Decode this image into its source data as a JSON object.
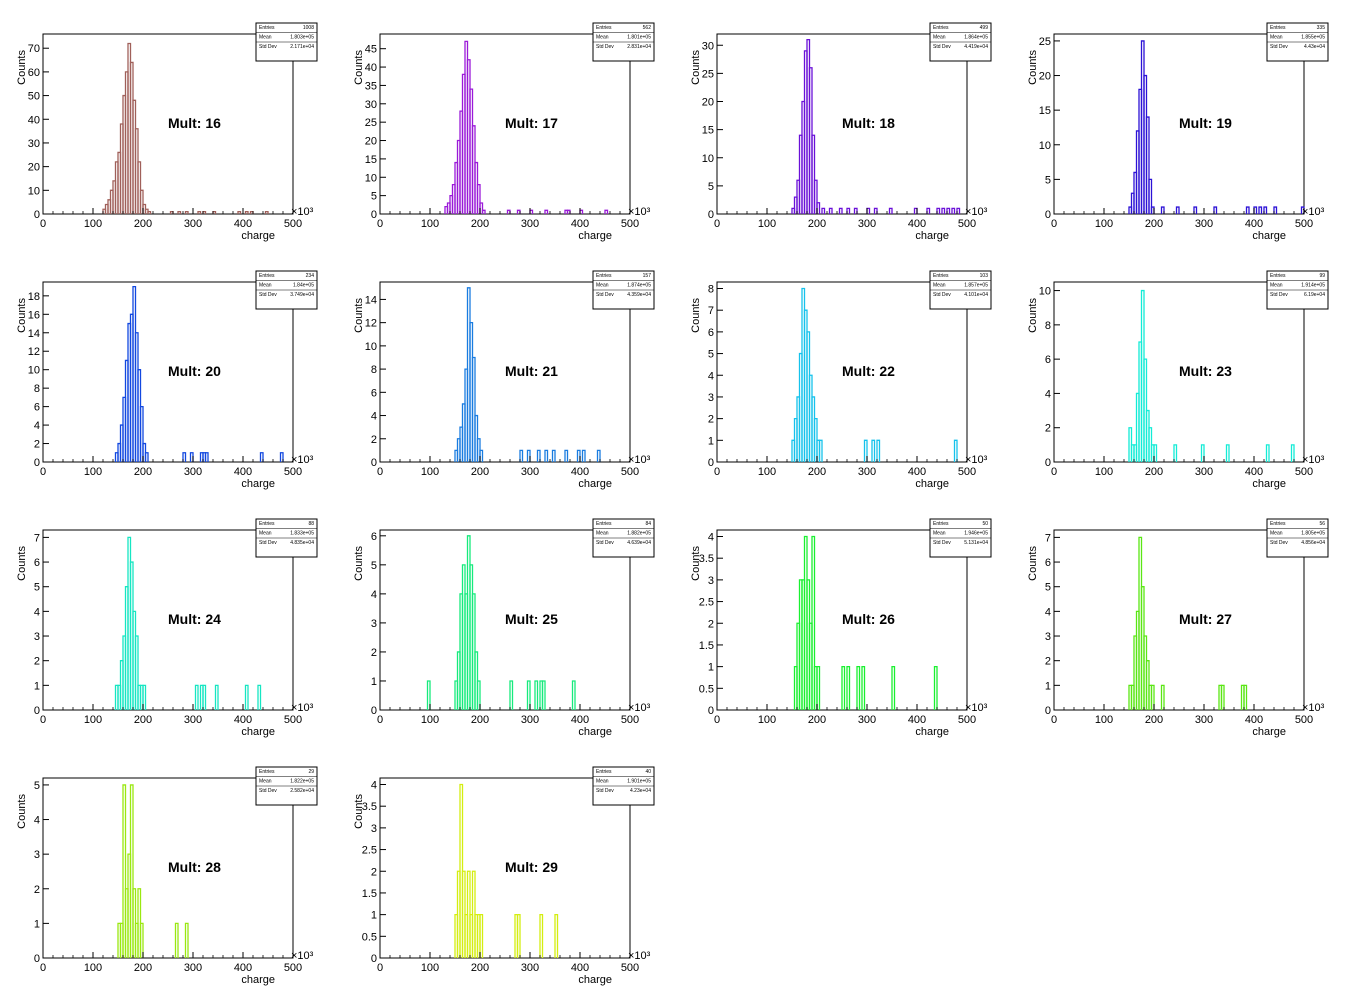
{
  "axis": {
    "xlabel": "charge",
    "ylabel": "Counts",
    "x_multiplier": "×10³",
    "xlim": [
      0,
      500
    ],
    "x_ticks": [
      0,
      100,
      200,
      300,
      400,
      500
    ]
  },
  "stats_labels": {
    "entries": "Entries",
    "mean": "Mean",
    "std": "Std Dev"
  },
  "chart_data": [
    {
      "type": "histogram",
      "title": "Mult: 16",
      "color": "#a0605a",
      "entries": "1008",
      "mean": "1.803e+05",
      "std": "2.171e+04",
      "ylim": [
        0,
        76
      ],
      "yticks": [
        0,
        10,
        20,
        30,
        40,
        50,
        60,
        70
      ],
      "bins": [
        [
          120,
          2
        ],
        [
          125,
          4
        ],
        [
          130,
          6
        ],
        [
          135,
          10
        ],
        [
          140,
          14
        ],
        [
          145,
          22
        ],
        [
          150,
          26
        ],
        [
          155,
          38
        ],
        [
          160,
          50
        ],
        [
          165,
          60
        ],
        [
          170,
          72
        ],
        [
          175,
          64
        ],
        [
          180,
          48
        ],
        [
          185,
          36
        ],
        [
          190,
          22
        ],
        [
          195,
          10
        ],
        [
          200,
          4
        ],
        [
          205,
          2
        ],
        [
          210,
          1
        ],
        [
          255,
          1
        ],
        [
          270,
          1
        ],
        [
          285,
          1
        ],
        [
          310,
          1
        ],
        [
          320,
          1
        ],
        [
          340,
          1
        ],
        [
          390,
          1
        ],
        [
          405,
          1
        ],
        [
          415,
          1
        ],
        [
          445,
          1
        ]
      ]
    },
    {
      "type": "histogram",
      "title": "Mult: 17",
      "color": "#9a1ad8",
      "entries": "562",
      "mean": "1.801e+05",
      "std": "2.831e+04",
      "ylim": [
        0,
        49
      ],
      "yticks": [
        0,
        5,
        10,
        15,
        20,
        25,
        30,
        35,
        40,
        45
      ],
      "bins": [
        [
          130,
          2
        ],
        [
          135,
          3
        ],
        [
          140,
          5
        ],
        [
          145,
          8
        ],
        [
          150,
          14
        ],
        [
          155,
          20
        ],
        [
          160,
          28
        ],
        [
          165,
          38
        ],
        [
          170,
          47
        ],
        [
          175,
          42
        ],
        [
          180,
          34
        ],
        [
          185,
          24
        ],
        [
          190,
          14
        ],
        [
          195,
          8
        ],
        [
          200,
          3
        ],
        [
          205,
          1
        ],
        [
          255,
          1
        ],
        [
          275,
          1
        ],
        [
          300,
          1
        ],
        [
          330,
          1
        ],
        [
          370,
          1
        ],
        [
          375,
          1
        ],
        [
          400,
          1
        ],
        [
          450,
          1
        ]
      ]
    },
    {
      "type": "histogram",
      "title": "Mult: 18",
      "color": "#6a10d8",
      "entries": "499",
      "mean": "1.864e+05",
      "std": "4.419e+04",
      "ylim": [
        0,
        32
      ],
      "yticks": [
        0,
        5,
        10,
        15,
        20,
        25,
        30
      ],
      "bins": [
        [
          150,
          1
        ],
        [
          155,
          3
        ],
        [
          160,
          6
        ],
        [
          165,
          14
        ],
        [
          170,
          20
        ],
        [
          175,
          29
        ],
        [
          180,
          31
        ],
        [
          185,
          26
        ],
        [
          190,
          14
        ],
        [
          195,
          6
        ],
        [
          200,
          2
        ],
        [
          210,
          1
        ],
        [
          225,
          1
        ],
        [
          245,
          1
        ],
        [
          260,
          1
        ],
        [
          275,
          1
        ],
        [
          300,
          1
        ],
        [
          315,
          1
        ],
        [
          345,
          1
        ],
        [
          395,
          1
        ],
        [
          420,
          1
        ],
        [
          440,
          1
        ],
        [
          450,
          1
        ],
        [
          460,
          1
        ],
        [
          470,
          1
        ],
        [
          480,
          1
        ]
      ]
    },
    {
      "type": "histogram",
      "title": "Mult: 19",
      "color": "#2c12d6",
      "entries": "335",
      "mean": "1.855e+05",
      "std": "4.43e+04",
      "ylim": [
        0,
        26
      ],
      "yticks": [
        0,
        5,
        10,
        15,
        20,
        25
      ],
      "bins": [
        [
          150,
          1
        ],
        [
          155,
          3
        ],
        [
          160,
          6
        ],
        [
          165,
          12
        ],
        [
          170,
          18
        ],
        [
          175,
          25
        ],
        [
          180,
          20
        ],
        [
          185,
          14
        ],
        [
          190,
          5
        ],
        [
          195,
          1
        ],
        [
          215,
          1
        ],
        [
          245,
          1
        ],
        [
          280,
          1
        ],
        [
          320,
          1
        ],
        [
          385,
          1
        ],
        [
          400,
          1
        ],
        [
          410,
          1
        ],
        [
          420,
          1
        ],
        [
          440,
          1
        ],
        [
          495,
          1
        ]
      ]
    },
    {
      "type": "histogram",
      "title": "Mult: 20",
      "color": "#1248e0",
      "entries": "234",
      "mean": "1.84e+05",
      "std": "3.749e+04",
      "ylim": [
        0,
        19.5
      ],
      "yticks": [
        0,
        2,
        4,
        6,
        8,
        10,
        12,
        14,
        16,
        18
      ],
      "bins": [
        [
          145,
          1
        ],
        [
          150,
          2
        ],
        [
          155,
          4
        ],
        [
          160,
          7
        ],
        [
          165,
          11
        ],
        [
          170,
          15
        ],
        [
          175,
          16
        ],
        [
          180,
          19
        ],
        [
          185,
          14
        ],
        [
          190,
          10
        ],
        [
          195,
          6
        ],
        [
          200,
          2
        ],
        [
          205,
          1
        ],
        [
          280,
          1
        ],
        [
          295,
          1
        ],
        [
          315,
          1
        ],
        [
          320,
          1
        ],
        [
          325,
          1
        ],
        [
          435,
          1
        ],
        [
          475,
          1
        ]
      ]
    },
    {
      "type": "histogram",
      "title": "Mult: 21",
      "color": "#1a7ce0",
      "entries": "157",
      "mean": "1.874e+05",
      "std": "4.359e+04",
      "ylim": [
        0,
        15.5
      ],
      "yticks": [
        0,
        2,
        4,
        6,
        8,
        10,
        12,
        14
      ],
      "bins": [
        [
          150,
          1
        ],
        [
          155,
          2
        ],
        [
          160,
          3
        ],
        [
          165,
          5
        ],
        [
          170,
          8
        ],
        [
          175,
          15
        ],
        [
          180,
          12
        ],
        [
          185,
          9
        ],
        [
          190,
          4
        ],
        [
          195,
          2
        ],
        [
          200,
          1
        ],
        [
          280,
          1
        ],
        [
          295,
          1
        ],
        [
          315,
          1
        ],
        [
          330,
          1
        ],
        [
          345,
          1
        ],
        [
          370,
          1
        ],
        [
          395,
          1
        ],
        [
          405,
          1
        ],
        [
          435,
          1
        ]
      ]
    },
    {
      "type": "histogram",
      "title": "Mult: 22",
      "color": "#16c2ec",
      "entries": "103",
      "mean": "1.857e+05",
      "std": "4.101e+04",
      "ylim": [
        0,
        8.3
      ],
      "yticks": [
        0,
        1,
        2,
        3,
        4,
        5,
        6,
        7,
        8
      ],
      "bins": [
        [
          150,
          1
        ],
        [
          155,
          2
        ],
        [
          160,
          3
        ],
        [
          165,
          5
        ],
        [
          170,
          8
        ],
        [
          175,
          7
        ],
        [
          180,
          6
        ],
        [
          185,
          4
        ],
        [
          190,
          3
        ],
        [
          195,
          2
        ],
        [
          200,
          1
        ],
        [
          205,
          1
        ],
        [
          295,
          1
        ],
        [
          310,
          1
        ],
        [
          320,
          1
        ],
        [
          475,
          1
        ]
      ]
    },
    {
      "type": "histogram",
      "title": "Mult: 23",
      "color": "#12ecd6",
      "entries": "99",
      "mean": "1.914e+05",
      "std": "6.19e+04",
      "ylim": [
        0,
        10.5
      ],
      "yticks": [
        0,
        2,
        4,
        6,
        8,
        10
      ],
      "bins": [
        [
          150,
          2
        ],
        [
          155,
          1
        ],
        [
          160,
          1
        ],
        [
          165,
          4
        ],
        [
          170,
          7
        ],
        [
          175,
          10
        ],
        [
          180,
          6
        ],
        [
          185,
          3
        ],
        [
          190,
          2
        ],
        [
          195,
          1
        ],
        [
          200,
          1
        ],
        [
          240,
          1
        ],
        [
          295,
          1
        ],
        [
          345,
          1
        ],
        [
          425,
          1
        ],
        [
          475,
          1
        ]
      ]
    },
    {
      "type": "histogram",
      "title": "Mult: 24",
      "color": "#16e6c2",
      "entries": "88",
      "mean": "1.833e+05",
      "std": "4.835e+04",
      "ylim": [
        0,
        7.3
      ],
      "yticks": [
        0,
        1,
        2,
        3,
        4,
        5,
        6,
        7
      ],
      "bins": [
        [
          145,
          1
        ],
        [
          150,
          1
        ],
        [
          155,
          2
        ],
        [
          160,
          3
        ],
        [
          165,
          5
        ],
        [
          170,
          7
        ],
        [
          175,
          6
        ],
        [
          180,
          4
        ],
        [
          185,
          3
        ],
        [
          190,
          1
        ],
        [
          195,
          1
        ],
        [
          200,
          1
        ],
        [
          305,
          1
        ],
        [
          315,
          1
        ],
        [
          320,
          1
        ],
        [
          345,
          1
        ],
        [
          405,
          1
        ],
        [
          430,
          1
        ]
      ]
    },
    {
      "type": "histogram",
      "title": "Mult: 25",
      "color": "#16ea7c",
      "entries": "84",
      "mean": "1.882e+05",
      "std": "4.639e+04",
      "ylim": [
        0,
        6.2
      ],
      "yticks": [
        0,
        1,
        2,
        3,
        4,
        5,
        6
      ],
      "bins": [
        [
          95,
          1
        ],
        [
          150,
          1
        ],
        [
          155,
          2
        ],
        [
          160,
          4
        ],
        [
          165,
          5
        ],
        [
          170,
          4
        ],
        [
          175,
          6
        ],
        [
          180,
          5
        ],
        [
          185,
          4
        ],
        [
          190,
          2
        ],
        [
          195,
          1
        ],
        [
          260,
          1
        ],
        [
          295,
          1
        ],
        [
          310,
          1
        ],
        [
          320,
          1
        ],
        [
          325,
          1
        ],
        [
          385,
          1
        ]
      ]
    },
    {
      "type": "histogram",
      "title": "Mult: 26",
      "color": "#1af030",
      "entries": "50",
      "mean": "1.946e+05",
      "std": "5.131e+04",
      "ylim": [
        0,
        4.15
      ],
      "yticks": [
        0,
        0.5,
        1,
        1.5,
        2,
        2.5,
        3,
        3.5,
        4
      ],
      "bins": [
        [
          155,
          1
        ],
        [
          160,
          2
        ],
        [
          165,
          3
        ],
        [
          170,
          3
        ],
        [
          175,
          4
        ],
        [
          180,
          3
        ],
        [
          185,
          2
        ],
        [
          190,
          4
        ],
        [
          195,
          1
        ],
        [
          200,
          1
        ],
        [
          250,
          1
        ],
        [
          260,
          1
        ],
        [
          280,
          1
        ],
        [
          290,
          1
        ],
        [
          350,
          1
        ],
        [
          435,
          1
        ]
      ]
    },
    {
      "type": "histogram",
      "title": "Mult: 27",
      "color": "#5ae614",
      "entries": "56",
      "mean": "1.805e+05",
      "std": "4.856e+04",
      "ylim": [
        0,
        7.3
      ],
      "yticks": [
        0,
        1,
        2,
        3,
        4,
        5,
        6,
        7
      ],
      "bins": [
        [
          150,
          1
        ],
        [
          155,
          1
        ],
        [
          160,
          3
        ],
        [
          165,
          4
        ],
        [
          170,
          7
        ],
        [
          175,
          5
        ],
        [
          180,
          3
        ],
        [
          185,
          2
        ],
        [
          190,
          1
        ],
        [
          195,
          1
        ],
        [
          215,
          1
        ],
        [
          330,
          1
        ],
        [
          335,
          1
        ],
        [
          375,
          1
        ],
        [
          380,
          1
        ]
      ]
    },
    {
      "type": "histogram",
      "title": "Mult: 28",
      "color": "#9ae810",
      "entries": "29",
      "mean": "1.822e+05",
      "std": "2.582e+04",
      "ylim": [
        0,
        5.2
      ],
      "yticks": [
        0,
        1,
        2,
        3,
        4,
        5
      ],
      "bins": [
        [
          150,
          1
        ],
        [
          155,
          1
        ],
        [
          160,
          5
        ],
        [
          165,
          2
        ],
        [
          170,
          3
        ],
        [
          175,
          5
        ],
        [
          180,
          2
        ],
        [
          185,
          1
        ],
        [
          190,
          2
        ],
        [
          195,
          1
        ],
        [
          265,
          1
        ],
        [
          285,
          1
        ]
      ]
    },
    {
      "type": "histogram",
      "title": "Mult: 29",
      "color": "#d4ee10",
      "entries": "40",
      "mean": "1.901e+05",
      "std": "4.23e+04",
      "ylim": [
        0,
        4.15
      ],
      "yticks": [
        0,
        0.5,
        1,
        1.5,
        2,
        2.5,
        3,
        3.5,
        4
      ],
      "bins": [
        [
          150,
          1
        ],
        [
          155,
          2
        ],
        [
          160,
          4
        ],
        [
          165,
          2
        ],
        [
          170,
          1
        ],
        [
          175,
          2
        ],
        [
          180,
          1
        ],
        [
          185,
          2
        ],
        [
          190,
          1
        ],
        [
          195,
          1
        ],
        [
          200,
          1
        ],
        [
          270,
          1
        ],
        [
          275,
          1
        ],
        [
          320,
          1
        ],
        [
          350,
          1
        ]
      ]
    }
  ]
}
